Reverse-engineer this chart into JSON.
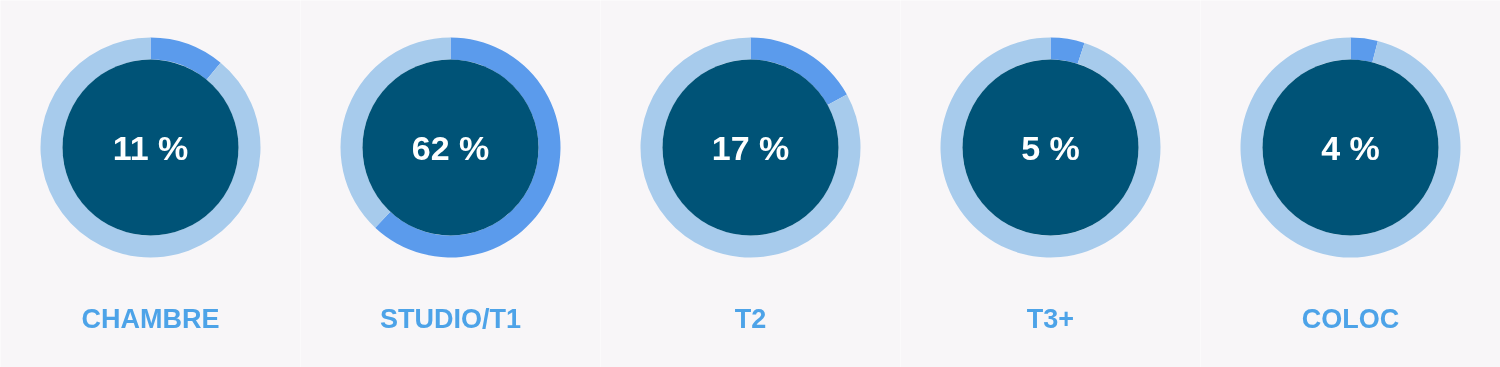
{
  "chart_data": [
    {
      "type": "donut",
      "title": "CHAMBRE",
      "categories": [
        null,
        null
      ],
      "values": [
        11,
        89
      ],
      "colors": [
        "#5b9bec",
        "#a7cbec"
      ],
      "annotations": [
        "11 %"
      ]
    },
    {
      "type": "donut",
      "title": "STUDIO/T1",
      "categories": [
        null,
        null
      ],
      "values": [
        62,
        38
      ],
      "colors": [
        "#5b9bec",
        "#a7cbec"
      ],
      "annotations": [
        "62 %"
      ]
    },
    {
      "type": "donut",
      "title": "T2",
      "categories": [
        null,
        null
      ],
      "values": [
        17,
        83
      ],
      "colors": [
        "#5b9bec",
        "#a7cbec"
      ],
      "annotations": [
        "17 %"
      ]
    },
    {
      "type": "donut",
      "title": "T3+",
      "categories": [
        null,
        null
      ],
      "values": [
        5,
        95
      ],
      "colors": [
        "#5b9bec",
        "#a7cbec"
      ],
      "annotations": [
        "5 %"
      ]
    },
    {
      "type": "donut",
      "title": "COLOC",
      "categories": [
        null,
        null
      ],
      "values": [
        4,
        96
      ],
      "colors": [
        "#5b9bec",
        "#a7cbec"
      ],
      "annotations": [
        "4 %"
      ]
    }
  ]
}
